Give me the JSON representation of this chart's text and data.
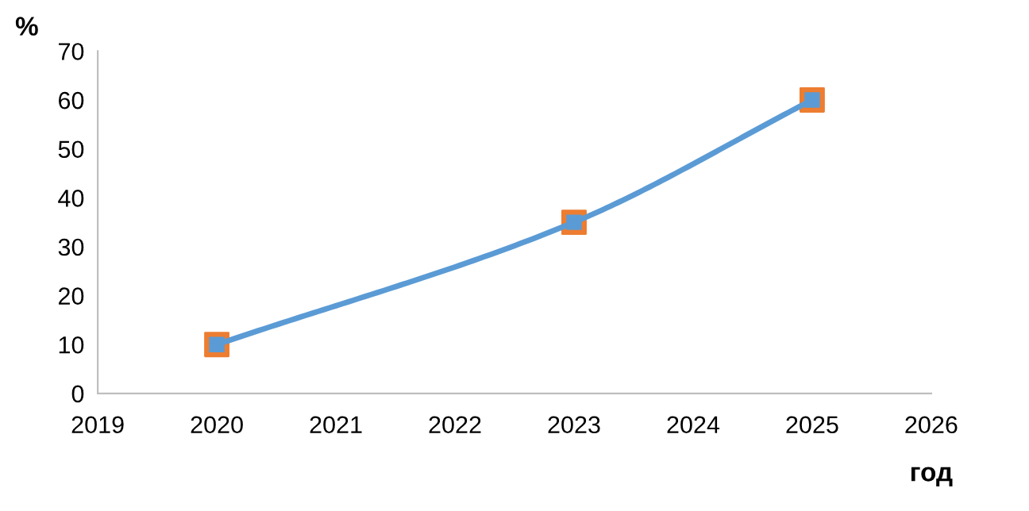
{
  "chart_data": {
    "type": "line",
    "xlabel": "год",
    "ylabel": "%",
    "xlim": [
      2019,
      2026
    ],
    "xticks": [
      2019,
      2020,
      2021,
      2022,
      2023,
      2024,
      2025,
      2026
    ],
    "ylim": [
      0,
      70
    ],
    "yticks": [
      0,
      10,
      20,
      30,
      40,
      50,
      60,
      70
    ],
    "grid": false,
    "series": [
      {
        "type": "scatter",
        "color": "#ed7d31",
        "marker": "square",
        "x": [
          2020,
          2023,
          2025
        ],
        "values": [
          10,
          35,
          60
        ]
      },
      {
        "color": "#5b9bd5",
        "marker": "square",
        "line_style": "solid",
        "x": [
          2020,
          2023,
          2025
        ],
        "values": [
          10,
          35,
          60
        ]
      }
    ]
  }
}
